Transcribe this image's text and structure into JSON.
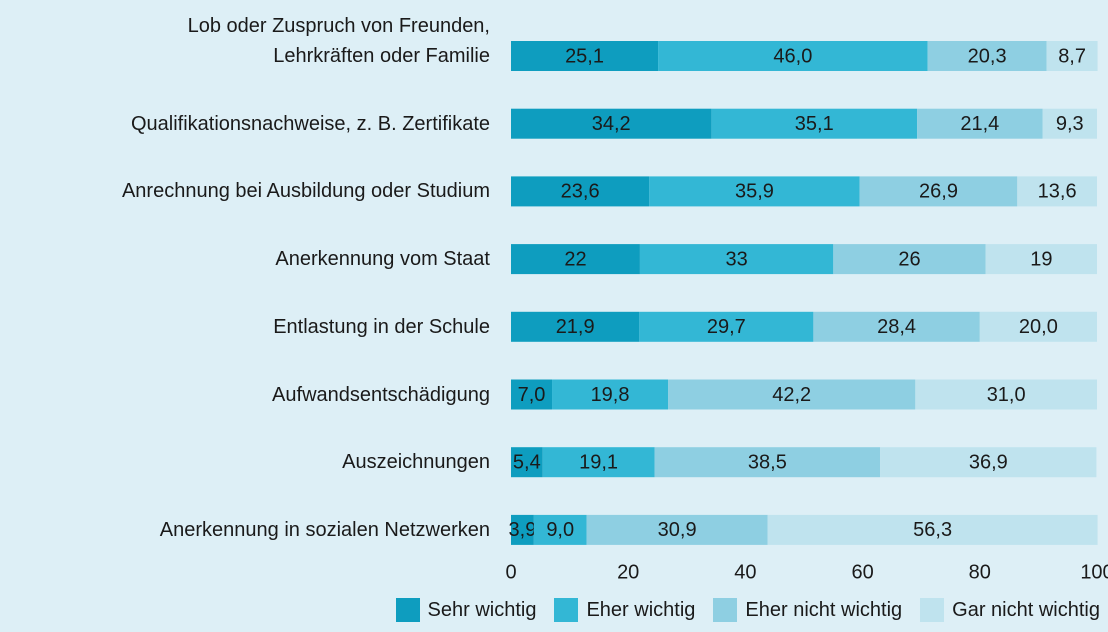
{
  "chart_data": {
    "type": "stacked_bar_horizontal",
    "categories": [
      "Lob oder Zuspruch von Freunden,\nLehrkräften oder Familie",
      "Qualifikationsnachweise, z. B. Zertifikate",
      "Anrechnung bei Ausbildung oder Studium",
      "Anerkennung vom Staat",
      "Entlastung in der Schule",
      "Aufwandsentschädigung",
      "Auszeichnungen",
      "Anerkennung in sozialen Netzwerken"
    ],
    "series": [
      {
        "name": "Sehr wichtig",
        "color": "#0e9dbf",
        "values": [
          25.1,
          34.2,
          23.6,
          22,
          21.9,
          7.0,
          5.4,
          3.9
        ],
        "value_labels": [
          "25,1",
          "34,2",
          "23,6",
          "22",
          "21,9",
          "7,0",
          "5,4",
          "3,9"
        ]
      },
      {
        "name": "Eher wichtig",
        "color": "#33b7d5",
        "values": [
          46.0,
          35.1,
          35.9,
          33,
          29.7,
          19.8,
          19.1,
          9.0
        ],
        "value_labels": [
          "46,0",
          "35,1",
          "35,9",
          "33",
          "29,7",
          "19,8",
          "19,1",
          "9,0"
        ]
      },
      {
        "name": "Eher nicht wichtig",
        "color": "#8ecfe2",
        "values": [
          20.3,
          21.4,
          26.9,
          26,
          28.4,
          42.2,
          38.5,
          30.9
        ],
        "value_labels": [
          "20,3",
          "21,4",
          "26,9",
          "26",
          "28,4",
          "42,2",
          "38,5",
          "30,9"
        ]
      },
      {
        "name": "Gar nicht wichtig",
        "color": "#bfe3ee",
        "values": [
          8.7,
          9.3,
          13.6,
          19,
          20.0,
          31.0,
          36.9,
          56.3
        ],
        "value_labels": [
          "8,7",
          "9,3",
          "13,6",
          "19",
          "20,0",
          "31,0",
          "36,9",
          "56,3"
        ]
      }
    ],
    "xlim": [
      0,
      100
    ],
    "xticks": [
      0,
      20,
      40,
      60,
      80,
      100
    ],
    "legend": "bottom"
  }
}
